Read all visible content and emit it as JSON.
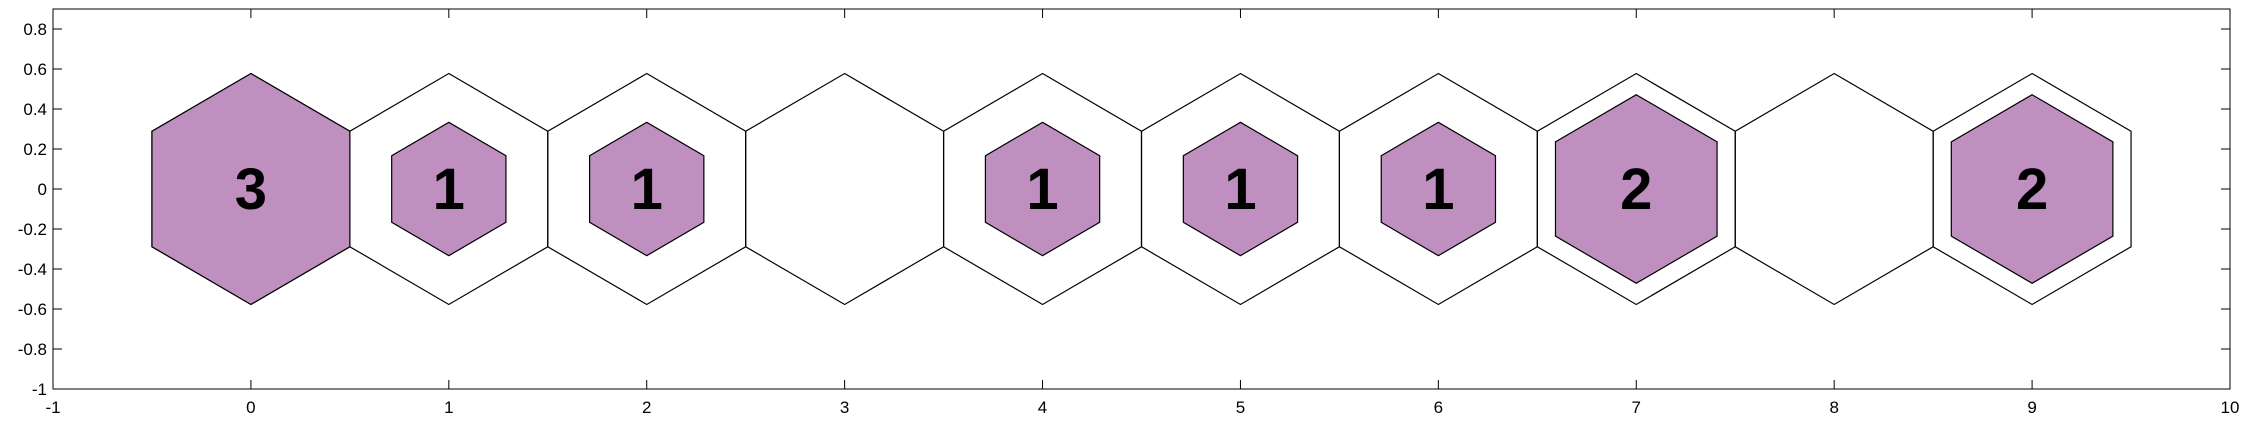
{
  "chart_data": {
    "type": "hexbin",
    "title": "",
    "xlabel": "",
    "ylabel": "",
    "xlim": [
      -1,
      10
    ],
    "ylim": [
      -1,
      0.9
    ],
    "xticks": [
      -1,
      0,
      1,
      2,
      3,
      4,
      5,
      6,
      7,
      8,
      9,
      10
    ],
    "yticks": [
      -1,
      -0.8,
      -0.6,
      -0.4,
      -0.2,
      0,
      0.2,
      0.4,
      0.6,
      0.8
    ],
    "xtick_labels": [
      "-1",
      "0",
      "1",
      "2",
      "3",
      "4",
      "5",
      "6",
      "7",
      "8",
      "9",
      "10"
    ],
    "ytick_labels": [
      "-1",
      "-0.8",
      "-0.6",
      "-0.4",
      "-0.2",
      "0",
      "0.2",
      "0.4",
      "0.6",
      "0.8"
    ],
    "max_count": 3,
    "fill_color": "#bf8fbf",
    "edge_color": "#000000",
    "grid": false,
    "cells": [
      {
        "x": 0,
        "y": 0,
        "count": 3,
        "label": "3"
      },
      {
        "x": 1,
        "y": 0,
        "count": 1,
        "label": "1"
      },
      {
        "x": 2,
        "y": 0,
        "count": 1,
        "label": "1"
      },
      {
        "x": 3,
        "y": 0,
        "count": 0,
        "label": ""
      },
      {
        "x": 4,
        "y": 0,
        "count": 1,
        "label": "1"
      },
      {
        "x": 5,
        "y": 0,
        "count": 1,
        "label": "1"
      },
      {
        "x": 6,
        "y": 0,
        "count": 1,
        "label": "1"
      },
      {
        "x": 7,
        "y": 0,
        "count": 2,
        "label": "2"
      },
      {
        "x": 8,
        "y": 0,
        "count": 0,
        "label": ""
      },
      {
        "x": 9,
        "y": 0,
        "count": 2,
        "label": "2"
      }
    ]
  }
}
